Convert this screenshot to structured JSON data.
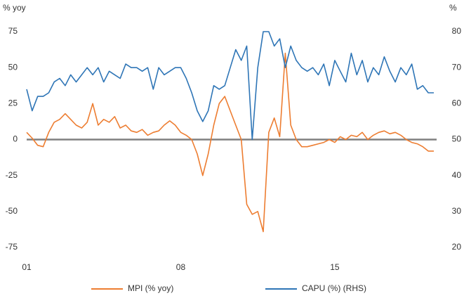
{
  "chart_data": {
    "type": "line",
    "y_label": "% yoy",
    "y2_label": "%",
    "x": [
      2001,
      2001.25,
      2001.5,
      2001.75,
      2002,
      2002.25,
      2002.5,
      2002.75,
      2003,
      2003.25,
      2003.5,
      2003.75,
      2004,
      2004.25,
      2004.5,
      2004.75,
      2005,
      2005.25,
      2005.5,
      2005.75,
      2006,
      2006.25,
      2006.5,
      2006.75,
      2007,
      2007.25,
      2007.5,
      2007.75,
      2008,
      2008.25,
      2008.5,
      2008.75,
      2009,
      2009.25,
      2009.5,
      2009.75,
      2010,
      2010.25,
      2010.5,
      2010.75,
      2011,
      2011.25,
      2011.5,
      2011.75,
      2012,
      2012.25,
      2012.5,
      2012.75,
      2013,
      2013.25,
      2013.5,
      2013.75,
      2014,
      2014.25,
      2014.5,
      2014.75,
      2015,
      2015.25,
      2015.5,
      2015.75,
      2016,
      2016.25,
      2016.5,
      2016.75,
      2017,
      2017.25,
      2017.5,
      2017.75,
      2018,
      2018.25,
      2018.5,
      2018.75,
      2019,
      2019.25,
      2019.5
    ],
    "series": [
      {
        "name": "MPI (% yoy)",
        "color": "#ed7d31",
        "values": [
          5,
          1,
          -4,
          -5,
          5,
          12,
          14,
          18,
          14,
          10,
          8,
          12,
          25,
          10,
          14,
          12,
          16,
          8,
          10,
          6,
          5,
          7,
          3,
          5,
          6,
          10,
          13,
          10,
          5,
          3,
          0,
          -10,
          -25,
          -10,
          10,
          25,
          30,
          20,
          10,
          0,
          -45,
          -52,
          -50,
          -64,
          5,
          15,
          2,
          60,
          10,
          0,
          -5,
          -5,
          -4,
          -3,
          -2,
          0,
          -2,
          2,
          0,
          3,
          2,
          5,
          0,
          3,
          5,
          6,
          4,
          5,
          3,
          0,
          -2,
          -3,
          -5,
          -8,
          -8
        ]
      },
      {
        "name": "CAPU (%) (RHS)",
        "color": "#2e75b6",
        "axis": "y2",
        "values": [
          64,
          58,
          62,
          62,
          63,
          66,
          67,
          65,
          68,
          66,
          68,
          70,
          68,
          70,
          66,
          69,
          68,
          67,
          71,
          70,
          70,
          69,
          70,
          64,
          70,
          68,
          69,
          70,
          70,
          67,
          63,
          58,
          55,
          58,
          65,
          64,
          65,
          70,
          75,
          72,
          76,
          50,
          70,
          80,
          80,
          76,
          78,
          70,
          76,
          72,
          70,
          69,
          70,
          68,
          71,
          65,
          72,
          69,
          66,
          74,
          68,
          72,
          66,
          70,
          68,
          73,
          69,
          66,
          70,
          68,
          71,
          64,
          65,
          63,
          63
        ]
      }
    ],
    "xlim": [
      2001,
      2019.66
    ],
    "xticks": [
      {
        "value": 2001,
        "label": "01"
      },
      {
        "value": 2008,
        "label": "08"
      },
      {
        "value": 2015,
        "label": "15"
      }
    ],
    "ylim": [
      -75,
      75
    ],
    "yticks": [
      75,
      50,
      25,
      0,
      -25,
      -50,
      -75
    ],
    "y2lim": [
      20,
      80
    ],
    "y2ticks": [
      80,
      70,
      60,
      50,
      40,
      30,
      20
    ],
    "legend": "bottom"
  }
}
